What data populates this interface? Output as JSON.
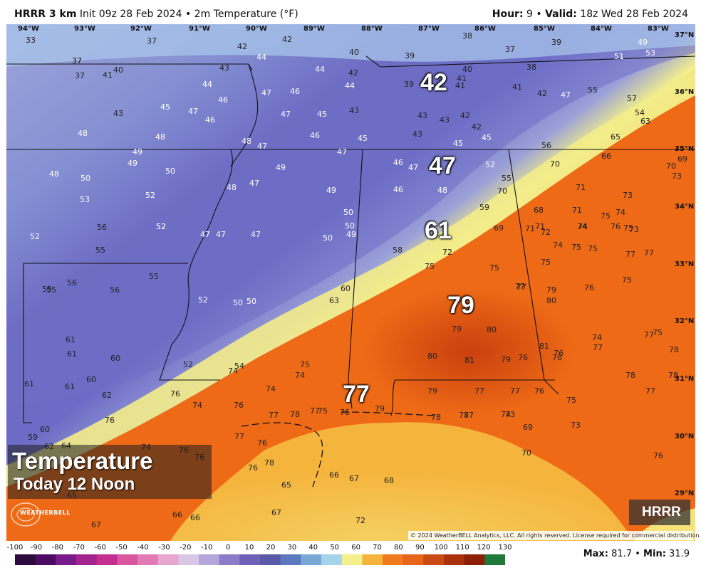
{
  "header": {
    "model": "HRRR 3 km",
    "init": "Init 09z 28 Feb 2024",
    "sep": "•",
    "variable": "2m Temperature (°F)",
    "hour_label": "Hour:",
    "hour_value": "9",
    "valid_label": "Valid:",
    "valid_value": "18z Wed 28 Feb 2024"
  },
  "title_box": {
    "line1": "Temperature",
    "line2": "Today 12 Noon"
  },
  "badge": "HRRR",
  "logo_text": "WEATHERBELL",
  "logo_icon": "swirl-logo-icon",
  "copyright": "© 2024 WeatherBELL Analytics, LLC. All rights reserved. License required for commercial distribution.",
  "stats": {
    "max_label": "Max:",
    "max_value": "81.7",
    "min_label": "Min:",
    "min_value": "31.9"
  },
  "longitudes": [
    "94°W",
    "93°W",
    "92°W",
    "91°W",
    "90°W",
    "89°W",
    "88°W",
    "87°W",
    "86°W",
    "85°W",
    "84°W",
    "83°W"
  ],
  "latitudes": [
    "37°N",
    "36°N",
    "35°N",
    "34°N",
    "33°N",
    "32°N",
    "31°N",
    "30°N",
    "29°N"
  ],
  "scale": {
    "labels": [
      "-100",
      "-90",
      "-80",
      "-70",
      "-60",
      "-50",
      "-40",
      "-30",
      "-20",
      "-10",
      "0",
      "10",
      "20",
      "30",
      "40",
      "50",
      "60",
      "70",
      "80",
      "90",
      "100",
      "110",
      "120",
      "130"
    ],
    "colors": [
      "#2d0a3e",
      "#4b0b63",
      "#7a1a8a",
      "#a3238f",
      "#c42f8f",
      "#d7569f",
      "#e07bb5",
      "#e8a6cf",
      "#d7c6e6",
      "#b4a6d8",
      "#8a7cc9",
      "#6e62b8",
      "#5a5aa8",
      "#5b79bf",
      "#7aa8d6",
      "#a4d3ea",
      "#f3ef8a",
      "#f5b43c",
      "#f07b1f",
      "#e8641a",
      "#c94a12",
      "#a9320c",
      "#8b1f08",
      "#1f7a3a"
    ]
  },
  "big_labels": [
    {
      "v": "42"
    },
    {
      "v": "47"
    },
    {
      "v": "61"
    },
    {
      "v": "79"
    },
    {
      "v": "77"
    }
  ],
  "temps": [
    {
      "v": "33"
    },
    {
      "v": "37"
    },
    {
      "v": "42"
    },
    {
      "v": "42"
    },
    {
      "v": "40"
    },
    {
      "v": "39"
    },
    {
      "v": "38"
    },
    {
      "v": "37"
    },
    {
      "v": "37"
    },
    {
      "v": "39"
    },
    {
      "v": "49"
    },
    {
      "v": "53"
    },
    {
      "v": "51"
    },
    {
      "v": "37"
    },
    {
      "v": "37"
    },
    {
      "v": "41"
    },
    {
      "v": "40"
    },
    {
      "v": "43"
    },
    {
      "v": "44"
    },
    {
      "v": "44"
    },
    {
      "v": "42"
    },
    {
      "v": "40"
    },
    {
      "v": "38"
    },
    {
      "v": "44"
    },
    {
      "v": "46"
    },
    {
      "v": "47"
    },
    {
      "v": "46"
    },
    {
      "v": "44"
    },
    {
      "v": "39"
    },
    {
      "v": "41"
    },
    {
      "v": "41"
    },
    {
      "v": "41"
    },
    {
      "v": "42"
    },
    {
      "v": "47"
    },
    {
      "v": "55"
    },
    {
      "v": "57"
    },
    {
      "v": "43"
    },
    {
      "v": "45"
    },
    {
      "v": "47"
    },
    {
      "v": "47"
    },
    {
      "v": "45"
    },
    {
      "v": "43"
    },
    {
      "v": "43"
    },
    {
      "v": "43"
    },
    {
      "v": "42"
    },
    {
      "v": "42"
    },
    {
      "v": "54"
    },
    {
      "v": "63"
    },
    {
      "v": "48"
    },
    {
      "v": "48"
    },
    {
      "v": "46"
    },
    {
      "v": "48"
    },
    {
      "v": "47"
    },
    {
      "v": "46"
    },
    {
      "v": "45"
    },
    {
      "v": "43"
    },
    {
      "v": "45"
    },
    {
      "v": "45"
    },
    {
      "v": "56"
    },
    {
      "v": "65"
    },
    {
      "v": "49"
    },
    {
      "v": "49"
    },
    {
      "v": "50"
    },
    {
      "v": "49"
    },
    {
      "v": "47"
    },
    {
      "v": "46"
    },
    {
      "v": "47"
    },
    {
      "v": "66"
    },
    {
      "v": "69"
    },
    {
      "v": "48"
    },
    {
      "v": "50"
    },
    {
      "v": "47"
    },
    {
      "v": "48"
    },
    {
      "v": "49"
    },
    {
      "v": "46"
    },
    {
      "v": "48"
    },
    {
      "v": "52"
    },
    {
      "v": "55"
    },
    {
      "v": "70"
    },
    {
      "v": "70"
    },
    {
      "v": "70"
    },
    {
      "v": "73"
    },
    {
      "v": "53"
    },
    {
      "v": "52"
    },
    {
      "v": "50"
    },
    {
      "v": "52"
    },
    {
      "v": "59"
    },
    {
      "v": "68"
    },
    {
      "v": "71"
    },
    {
      "v": "73"
    },
    {
      "v": "56"
    },
    {
      "v": "52"
    },
    {
      "v": "47"
    },
    {
      "v": "47"
    },
    {
      "v": "47"
    },
    {
      "v": "50"
    },
    {
      "v": "50"
    },
    {
      "v": "49"
    },
    {
      "v": "69"
    },
    {
      "v": "71"
    },
    {
      "v": "71"
    },
    {
      "v": "72"
    },
    {
      "v": "74"
    },
    {
      "v": "75"
    },
    {
      "v": "75"
    },
    {
      "v": "52"
    },
    {
      "v": "55"
    },
    {
      "v": "58"
    },
    {
      "v": "72"
    },
    {
      "v": "71"
    },
    {
      "v": "74"
    },
    {
      "v": "76"
    },
    {
      "v": "73"
    },
    {
      "v": "74"
    },
    {
      "v": "55"
    },
    {
      "v": "56"
    },
    {
      "v": "56"
    },
    {
      "v": "55"
    },
    {
      "v": "75"
    },
    {
      "v": "75"
    },
    {
      "v": "74"
    },
    {
      "v": "75"
    },
    {
      "v": "75"
    },
    {
      "v": "77"
    },
    {
      "v": "55"
    },
    {
      "v": "52"
    },
    {
      "v": "50"
    },
    {
      "v": "50"
    },
    {
      "v": "60"
    },
    {
      "v": "63"
    },
    {
      "v": "77"
    },
    {
      "v": "75"
    },
    {
      "v": "76"
    },
    {
      "v": "77"
    },
    {
      "v": "75"
    },
    {
      "v": "79"
    },
    {
      "v": "80"
    },
    {
      "v": "77"
    },
    {
      "v": "76"
    },
    {
      "v": "74"
    },
    {
      "v": "75"
    },
    {
      "v": "61"
    },
    {
      "v": "52"
    },
    {
      "v": "54"
    },
    {
      "v": "79"
    },
    {
      "v": "80"
    },
    {
      "v": "81"
    },
    {
      "v": "77"
    },
    {
      "v": "78"
    },
    {
      "v": "61"
    },
    {
      "v": "60"
    },
    {
      "v": "74"
    },
    {
      "v": "75"
    },
    {
      "v": "80"
    },
    {
      "v": "81"
    },
    {
      "v": "79"
    },
    {
      "v": "76"
    },
    {
      "v": "76"
    },
    {
      "v": "77"
    },
    {
      "v": "78"
    },
    {
      "v": "61"
    },
    {
      "v": "61"
    },
    {
      "v": "60"
    },
    {
      "v": "62"
    },
    {
      "v": "74"
    },
    {
      "v": "74"
    },
    {
      "v": "79"
    },
    {
      "v": "77"
    },
    {
      "v": "77"
    },
    {
      "v": "76"
    },
    {
      "v": "78"
    },
    {
      "v": "76"
    },
    {
      "v": "74"
    },
    {
      "v": "76"
    },
    {
      "v": "77"
    },
    {
      "v": "78"
    },
    {
      "v": "77"
    },
    {
      "v": "75"
    },
    {
      "v": "76"
    },
    {
      "v": "79"
    },
    {
      "v": "78"
    },
    {
      "v": "77"
    },
    {
      "v": "75"
    },
    {
      "v": "77"
    },
    {
      "v": "59"
    },
    {
      "v": "60"
    },
    {
      "v": "62"
    },
    {
      "v": "64"
    },
    {
      "v": "76"
    },
    {
      "v": "74"
    },
    {
      "v": "77"
    },
    {
      "v": "76"
    },
    {
      "v": "78"
    },
    {
      "v": "74"
    },
    {
      "v": "73"
    },
    {
      "v": "69"
    },
    {
      "v": "73"
    },
    {
      "v": "76"
    },
    {
      "v": "76"
    },
    {
      "v": "76"
    },
    {
      "v": "78"
    },
    {
      "v": "70"
    },
    {
      "v": "76"
    },
    {
      "v": "65"
    },
    {
      "v": "65"
    },
    {
      "v": "66"
    },
    {
      "v": "67"
    },
    {
      "v": "68"
    },
    {
      "v": "66"
    },
    {
      "v": "66"
    },
    {
      "v": "67"
    },
    {
      "v": "67"
    },
    {
      "v": "72"
    }
  ]
}
